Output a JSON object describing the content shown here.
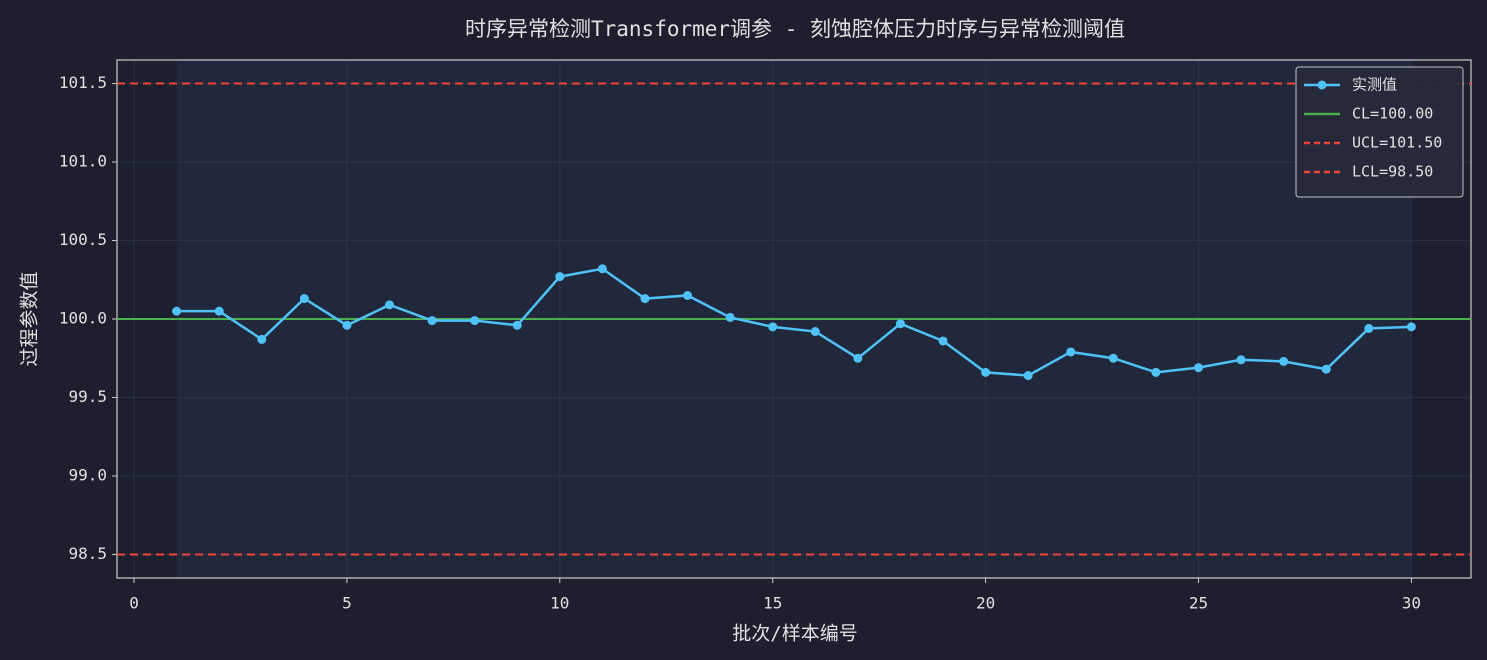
{
  "chart_data": {
    "type": "line",
    "title": "时序异常检测Transformer调参 - 刻蚀腔体压力时序与异常检测阈值",
    "x_label": "批次/样本编号",
    "y_label": "过程参数值",
    "x": [
      1,
      2,
      3,
      4,
      5,
      6,
      7,
      8,
      9,
      10,
      11,
      12,
      13,
      14,
      15,
      16,
      17,
      18,
      19,
      20,
      21,
      22,
      23,
      24,
      25,
      26,
      27,
      28,
      29,
      30
    ],
    "series": [
      {
        "name": "实测值",
        "color": "#4fc3f7",
        "values": [
          100.05,
          100.05,
          99.87,
          100.13,
          99.96,
          100.09,
          99.99,
          99.99,
          99.96,
          100.27,
          100.32,
          100.13,
          100.15,
          100.01,
          99.95,
          99.92,
          99.75,
          99.97,
          99.86,
          99.66,
          99.64,
          99.79,
          99.75,
          99.66,
          99.69,
          99.74,
          99.73,
          99.68,
          99.94,
          99.95
        ]
      }
    ],
    "reference_lines": [
      {
        "name": "CL=100.00",
        "value": 100,
        "color": "#4caf50",
        "style": "solid"
      },
      {
        "name": "UCL=101.50",
        "value": 101.5,
        "color": "#f44336",
        "style": "dashed"
      },
      {
        "name": "LCL=98.50",
        "value": 98.5,
        "color": "#f44336",
        "style": "dashed"
      }
    ],
    "xlim": [
      -0.4,
      31.4
    ],
    "ylim": [
      98.35,
      101.65
    ],
    "xticks": [
      0,
      5,
      10,
      15,
      20,
      25,
      30
    ],
    "yticks": [
      98.5,
      {
        "value": 99,
        "label": "99.0"
      },
      99.5,
      {
        "value": 100,
        "label": "100.0"
      },
      100.5,
      {
        "value": 101,
        "label": "101.0"
      },
      101.5
    ],
    "grid": true,
    "legend": "upper right"
  }
}
